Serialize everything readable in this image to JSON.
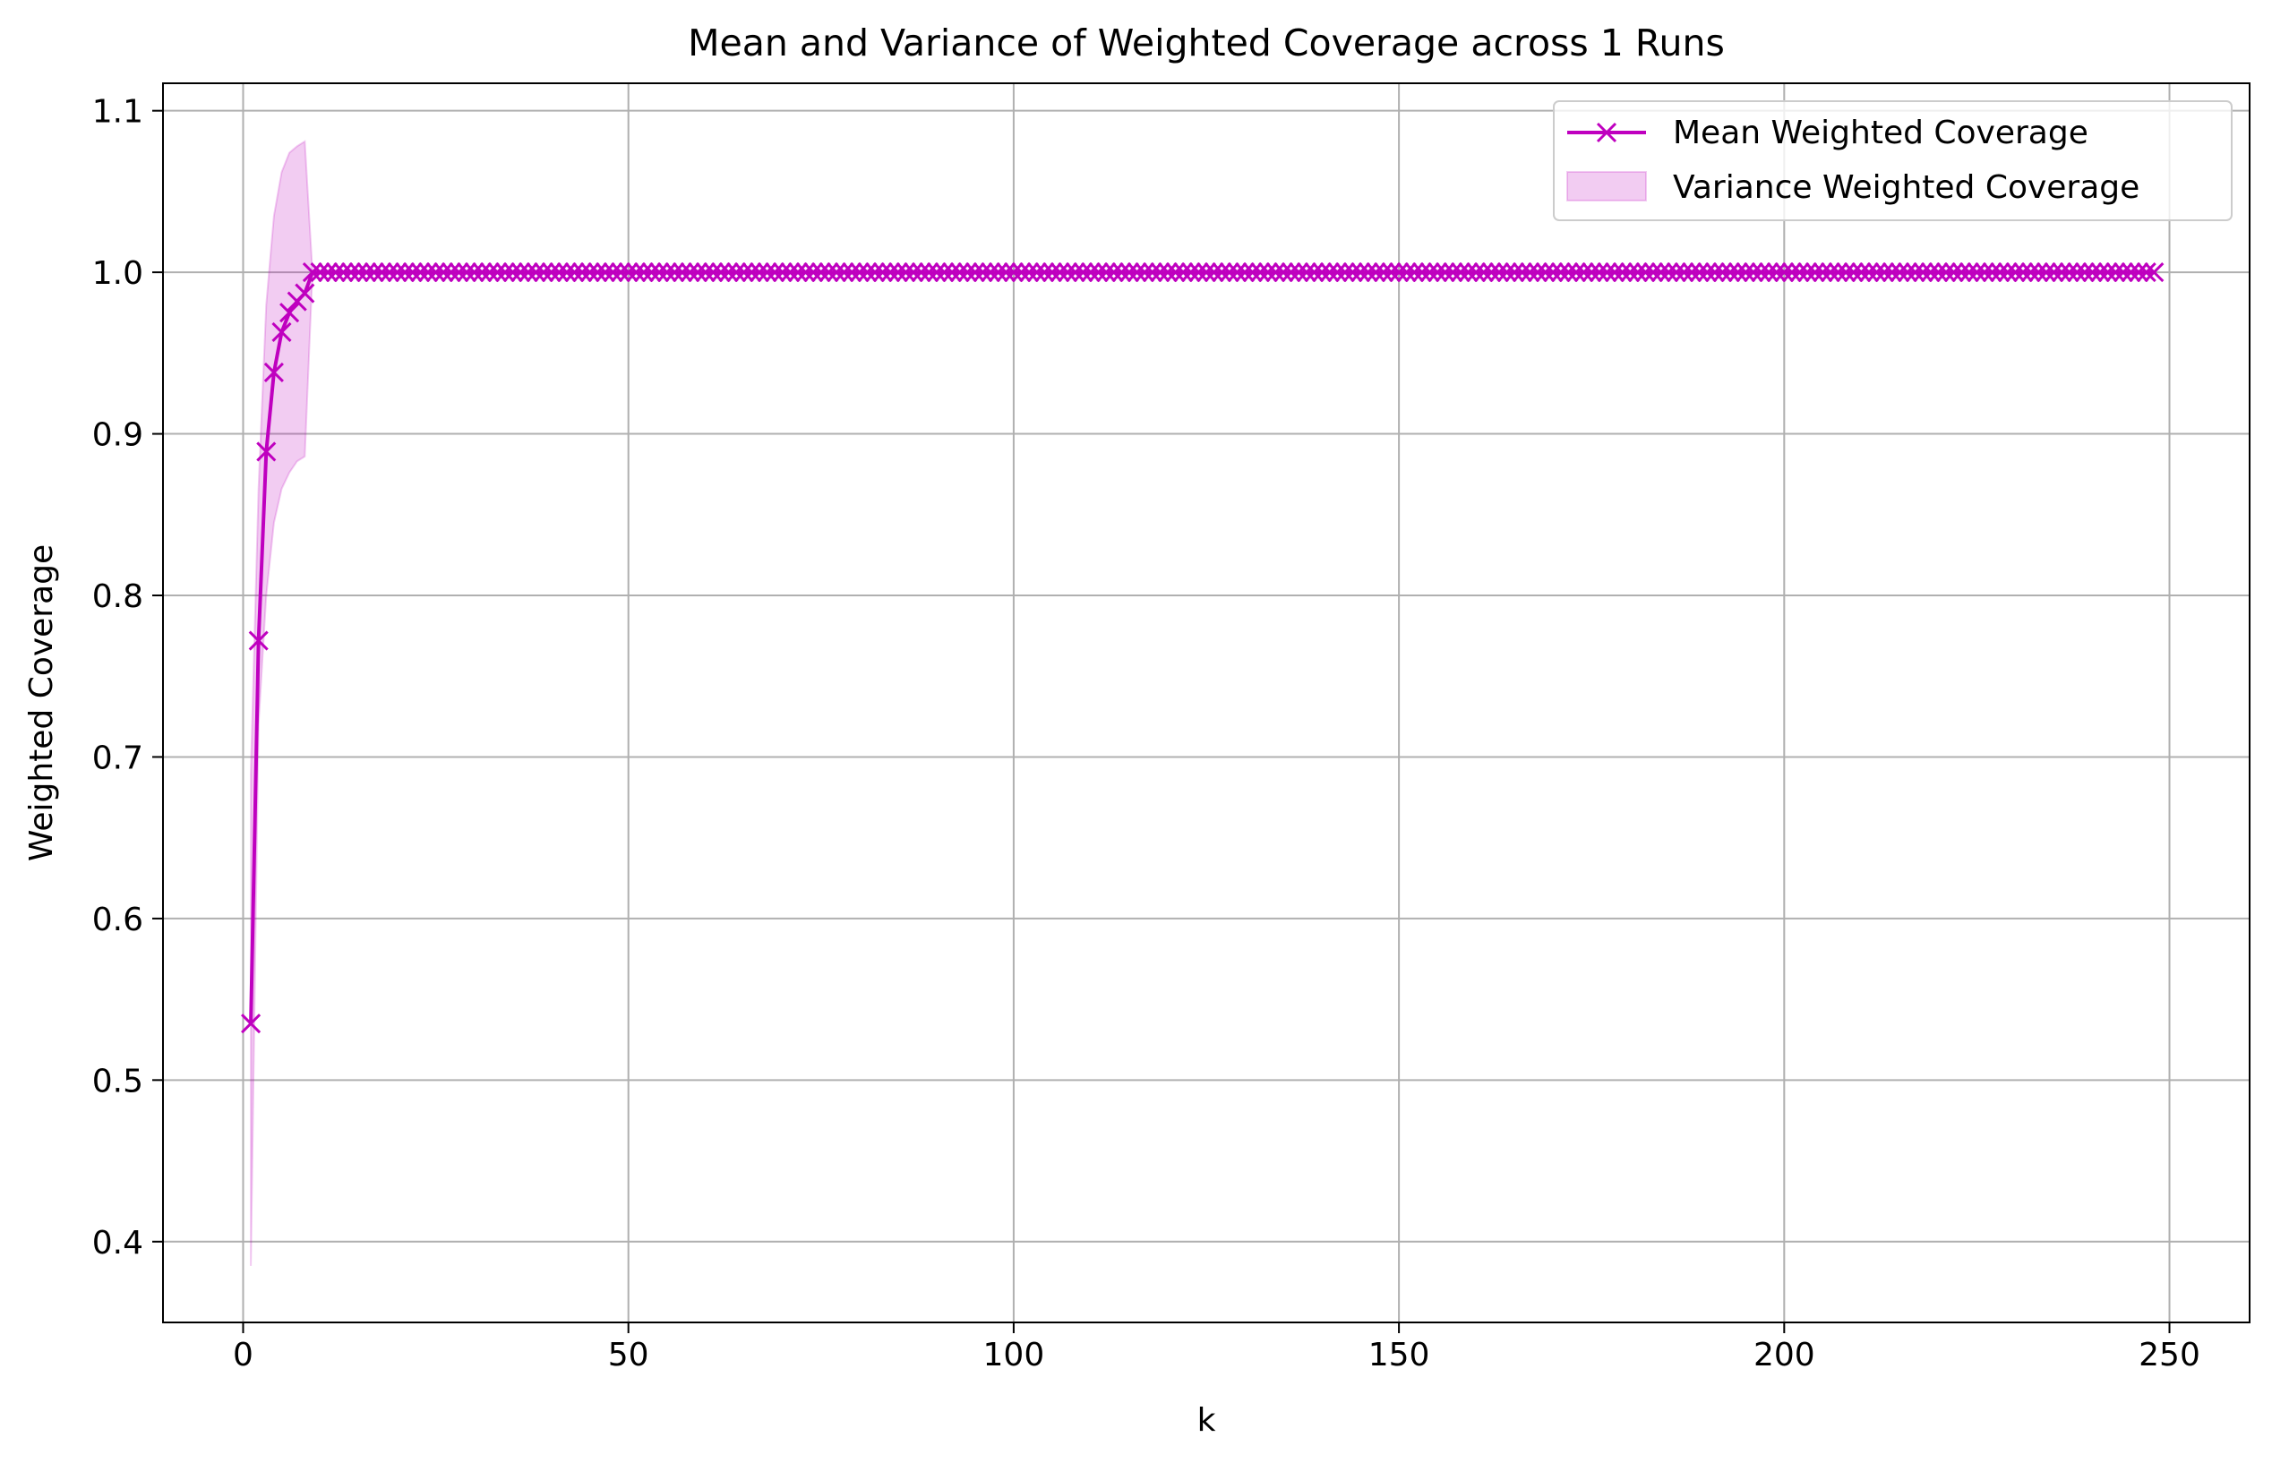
{
  "chart_data": {
    "type": "line",
    "title": "Mean and Variance of Weighted Coverage across 1 Runs",
    "xlabel": "k",
    "ylabel": "Weighted Coverage",
    "xlim": [
      -10.4,
      260.4
    ],
    "ylim": [
      0.35,
      1.117
    ],
    "xticks": [
      0,
      50,
      100,
      150,
      200,
      250
    ],
    "yticks": [
      0.4,
      0.5,
      0.6,
      0.7,
      0.8,
      0.9,
      1.0,
      1.1
    ],
    "xtick_labels": [
      "0",
      "50",
      "100",
      "150",
      "200",
      "250"
    ],
    "ytick_labels": [
      "0.4",
      "0.5",
      "0.6",
      "0.7",
      "0.8",
      "0.9",
      "1.0",
      "1.1"
    ],
    "grid": true,
    "legend": "upper right",
    "series": [
      {
        "name": "Mean Weighted Coverage",
        "kind": "line",
        "marker": "x",
        "color": "#bf00bf",
        "x_start": 1,
        "x_end": 248,
        "y_head": [
          0.535,
          0.772,
          0.889,
          0.938,
          0.963,
          0.975,
          0.982,
          0.987,
          1.0
        ],
        "y_rest": 1.0
      },
      {
        "name": "Variance Weighted Coverage",
        "kind": "band",
        "color": "#bf00bf",
        "opacity": 0.2,
        "x_start": 1,
        "upper_head": [
          0.69,
          0.866,
          0.98,
          1.035,
          1.062,
          1.074,
          1.078,
          1.081,
          1.0
        ],
        "lower_head": [
          0.385,
          0.72,
          0.8,
          0.845,
          0.866,
          0.876,
          0.883,
          0.886,
          1.0
        ],
        "upper_rest": 1.0,
        "lower_rest": 1.0
      }
    ]
  }
}
